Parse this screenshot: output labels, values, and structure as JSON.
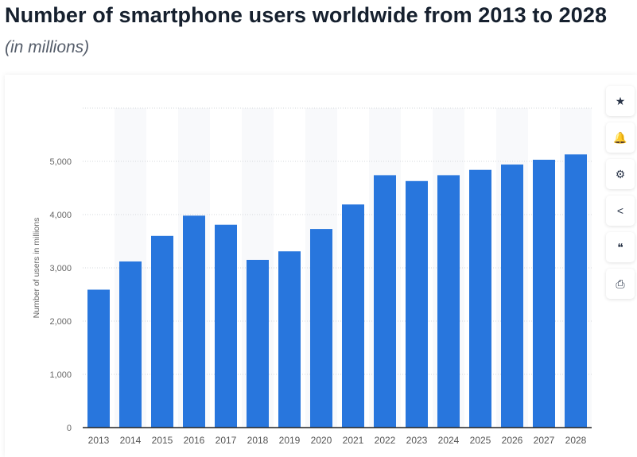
{
  "header": {
    "title": "Number of smartphone users worldwide from 2013 to 2028",
    "subtitle": "(in millions)"
  },
  "toolbar": [
    {
      "name": "star-icon",
      "glyph": "★"
    },
    {
      "name": "bell-icon",
      "glyph": "🔔"
    },
    {
      "name": "gear-icon",
      "glyph": "⚙"
    },
    {
      "name": "share-icon",
      "glyph": "<"
    },
    {
      "name": "quote-icon",
      "glyph": "❝"
    },
    {
      "name": "print-icon",
      "glyph": "⎙"
    }
  ],
  "chart_data": {
    "type": "bar",
    "title": "Number of smartphone users worldwide from 2013 to 2028",
    "subtitle": "(in millions)",
    "xlabel": "",
    "ylabel": "Number of users in millions",
    "ylim": [
      0,
      6000
    ],
    "yticks": [
      0,
      1000,
      2000,
      3000,
      4000,
      5000
    ],
    "ytick_labels": [
      "0",
      "1,000",
      "2,000",
      "3,000",
      "4,000",
      "5,000"
    ],
    "grid": true,
    "color": "#2876dd",
    "categories": [
      "2013",
      "2014",
      "2015",
      "2016",
      "2017",
      "2018",
      "2019",
      "2020",
      "2021",
      "2022",
      "2023",
      "2024",
      "2025",
      "2026",
      "2027",
      "2028"
    ],
    "values": [
      2590,
      3120,
      3600,
      3980,
      3810,
      3150,
      3310,
      3730,
      4190,
      4740,
      4630,
      4740,
      4840,
      4940,
      5030,
      5130
    ]
  }
}
